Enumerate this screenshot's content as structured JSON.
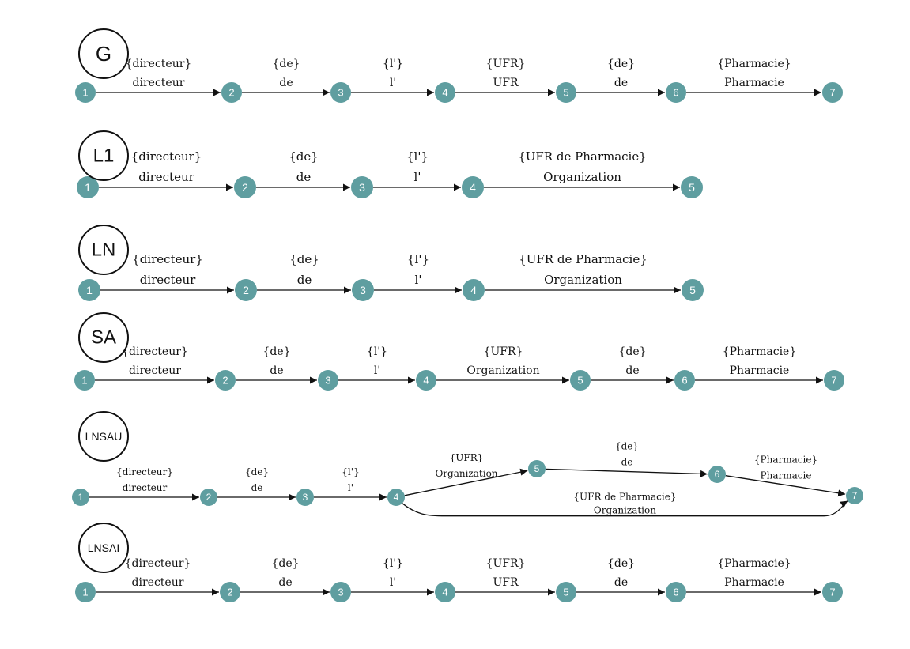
{
  "node_color": "#5f9ea0",
  "graphs": [
    {
      "label": "G",
      "nodes": [
        "1",
        "2",
        "3",
        "4",
        "5",
        "6",
        "7"
      ],
      "edges": [
        {
          "from": "1",
          "to": "2",
          "top": "{directeur}",
          "bottom": "directeur"
        },
        {
          "from": "2",
          "to": "3",
          "top": "{de}",
          "bottom": "de"
        },
        {
          "from": "3",
          "to": "4",
          "top": "{l'}",
          "bottom": "l'"
        },
        {
          "from": "4",
          "to": "5",
          "top": "{UFR}",
          "bottom": "UFR"
        },
        {
          "from": "5",
          "to": "6",
          "top": "{de}",
          "bottom": "de"
        },
        {
          "from": "6",
          "to": "7",
          "top": "{Pharmacie}",
          "bottom": "Pharmacie"
        }
      ]
    },
    {
      "label": "L1",
      "nodes": [
        "1",
        "2",
        "3",
        "4",
        "5"
      ],
      "edges": [
        {
          "from": "1",
          "to": "2",
          "top": "{directeur}",
          "bottom": "directeur"
        },
        {
          "from": "2",
          "to": "3",
          "top": "{de}",
          "bottom": "de"
        },
        {
          "from": "3",
          "to": "4",
          "top": "{l'}",
          "bottom": "l'"
        },
        {
          "from": "4",
          "to": "5",
          "top": "{UFR de Pharmacie}",
          "bottom": "Organization"
        }
      ]
    },
    {
      "label": "LN",
      "nodes": [
        "1",
        "2",
        "3",
        "4",
        "5"
      ],
      "edges": [
        {
          "from": "1",
          "to": "2",
          "top": "{directeur}",
          "bottom": "directeur"
        },
        {
          "from": "2",
          "to": "3",
          "top": "{de}",
          "bottom": "de"
        },
        {
          "from": "3",
          "to": "4",
          "top": "{l'}",
          "bottom": "l'"
        },
        {
          "from": "4",
          "to": "5",
          "top": "{UFR de Pharmacie}",
          "bottom": "Organization"
        }
      ]
    },
    {
      "label": "SA",
      "nodes": [
        "1",
        "2",
        "3",
        "4",
        "5",
        "6",
        "7"
      ],
      "edges": [
        {
          "from": "1",
          "to": "2",
          "top": "{directeur}",
          "bottom": "directeur"
        },
        {
          "from": "2",
          "to": "3",
          "top": "{de}",
          "bottom": "de"
        },
        {
          "from": "3",
          "to": "4",
          "top": "{l'}",
          "bottom": "l'"
        },
        {
          "from": "4",
          "to": "5",
          "top": "{UFR}",
          "bottom": "Organization"
        },
        {
          "from": "5",
          "to": "6",
          "top": "{de}",
          "bottom": "de"
        },
        {
          "from": "6",
          "to": "7",
          "top": "{Pharmacie}",
          "bottom": "Pharmacie"
        }
      ]
    },
    {
      "label": "LNSAU",
      "nodes": [
        "1",
        "2",
        "3",
        "4",
        "5",
        "6",
        "7"
      ],
      "edges": [
        {
          "from": "1",
          "to": "2",
          "top": "{directeur}",
          "bottom": "directeur"
        },
        {
          "from": "2",
          "to": "3",
          "top": "{de}",
          "bottom": "de"
        },
        {
          "from": "3",
          "to": "4",
          "top": "{l'}",
          "bottom": "l'"
        },
        {
          "from": "4",
          "to": "5",
          "top": "{UFR}",
          "bottom": "Organization"
        },
        {
          "from": "5",
          "to": "6",
          "top": "{de}",
          "bottom": "de"
        },
        {
          "from": "6",
          "to": "7",
          "top": "{Pharmacie}",
          "bottom": "Pharmacie"
        },
        {
          "from": "4",
          "to": "7",
          "top": "{UFR de Pharmacie}",
          "bottom": "Organization"
        }
      ]
    },
    {
      "label": "LNSAI",
      "nodes": [
        "1",
        "2",
        "3",
        "4",
        "5",
        "6",
        "7"
      ],
      "edges": [
        {
          "from": "1",
          "to": "2",
          "top": "{directeur}",
          "bottom": "directeur"
        },
        {
          "from": "2",
          "to": "3",
          "top": "{de}",
          "bottom": "de"
        },
        {
          "from": "3",
          "to": "4",
          "top": "{l'}",
          "bottom": "l'"
        },
        {
          "from": "4",
          "to": "5",
          "top": "{UFR}",
          "bottom": "UFR"
        },
        {
          "from": "5",
          "to": "6",
          "top": "{de}",
          "bottom": "de"
        },
        {
          "from": "6",
          "to": "7",
          "top": "{Pharmacie}",
          "bottom": "Pharmacie"
        }
      ]
    }
  ]
}
